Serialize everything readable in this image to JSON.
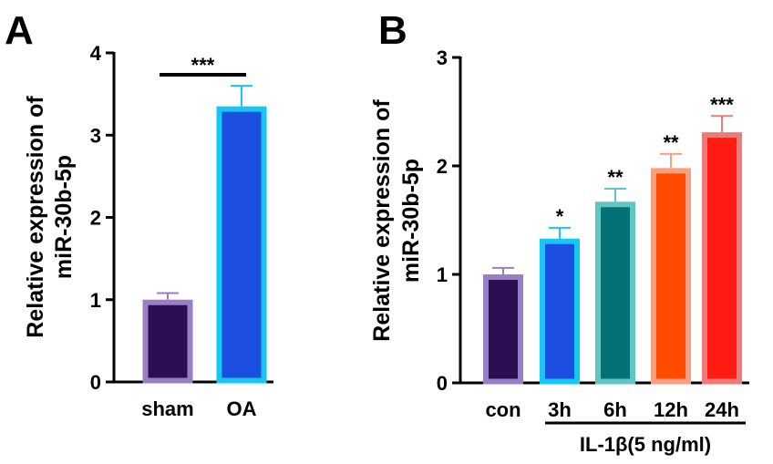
{
  "chart_data": [
    {
      "panel": "A",
      "type": "bar",
      "ylabel_lines": [
        "Relative expression of",
        "miR-30b-5p"
      ],
      "ylim": [
        0,
        4
      ],
      "yticks": [
        0,
        1,
        2,
        3,
        4
      ],
      "categories": [
        "sham",
        "OA"
      ],
      "values": [
        1.0,
        3.35
      ],
      "errors": [
        0.08,
        0.25
      ],
      "bar_fill": [
        "#2a0f52",
        "#1c4fe0"
      ],
      "bar_edge": [
        "#9b7fc6",
        "#16c6f5"
      ],
      "significance": [
        {
          "from": 0,
          "to": 1,
          "text": "***"
        }
      ]
    },
    {
      "panel": "B",
      "type": "bar",
      "ylabel_lines": [
        "Relative expression of",
        "miR-30b-5p"
      ],
      "ylim": [
        0,
        3
      ],
      "yticks": [
        0,
        1,
        2,
        3
      ],
      "categories": [
        "con",
        "3h",
        "6h",
        "12h",
        "24h"
      ],
      "values": [
        1.0,
        1.33,
        1.67,
        1.98,
        2.31
      ],
      "errors": [
        0.06,
        0.1,
        0.12,
        0.13,
        0.15
      ],
      "bar_fill": [
        "#2a0f52",
        "#1c4fe0",
        "#047078",
        "#ff4b00",
        "#ff1a12"
      ],
      "bar_edge": [
        "#9b7fc6",
        "#16c6f5",
        "#5fc6c4",
        "#f7a080",
        "#f07a78"
      ],
      "significance_labels": [
        "",
        "*",
        "**",
        "**",
        "***"
      ],
      "group_label": "IL-1β(5 ng/ml)"
    }
  ]
}
